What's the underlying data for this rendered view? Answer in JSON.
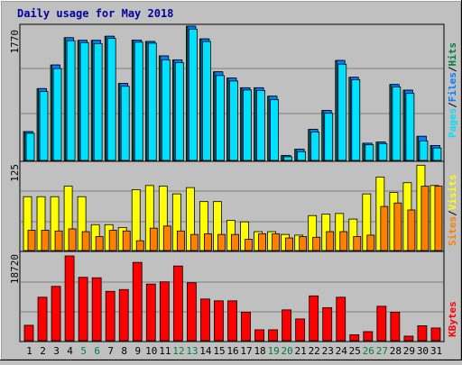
{
  "chart_data": [
    {
      "type": "bar",
      "title": "Daily usage for May 2018",
      "categories": [
        "1",
        "2",
        "3",
        "4",
        "5",
        "6",
        "7",
        "8",
        "9",
        "10",
        "11",
        "12",
        "13",
        "14",
        "15",
        "16",
        "17",
        "18",
        "19",
        "20",
        "21",
        "22",
        "23",
        "24",
        "25",
        "26",
        "27",
        "28",
        "29",
        "30",
        "31"
      ],
      "weekend_days": [
        "5",
        "6",
        "12",
        "13",
        "19",
        "20",
        "26",
        "27"
      ],
      "ymax_label": "1770",
      "ylim": [
        0,
        1770
      ],
      "ylabel_parts": [
        "Pages",
        "/",
        "Files",
        "/",
        "Hits"
      ],
      "series": [
        {
          "name": "Hits",
          "color": "#008040",
          "values": [
            380,
            947,
            1258,
            1618,
            1583,
            1583,
            1637,
            1015,
            1586,
            1568,
            1378,
            1326,
            1770,
            1602,
            1168,
            1086,
            958,
            958,
            847,
            65,
            148,
            409,
            659,
            1318,
            1096,
            227,
            242,
            1001,
            926,
            318,
            197
          ]
        },
        {
          "name": "Files",
          "color": "#0080ff",
          "values": [
            380,
            947,
            1258,
            1618,
            1583,
            1583,
            1637,
            1015,
            1586,
            1568,
            1378,
            1326,
            1770,
            1602,
            1168,
            1086,
            958,
            958,
            847,
            65,
            148,
            409,
            659,
            1318,
            1096,
            227,
            242,
            1001,
            926,
            318,
            197
          ]
        },
        {
          "name": "Pages",
          "color": "#00e0ff",
          "values": [
            358,
            908,
            1210,
            1578,
            1553,
            1540,
            1608,
            977,
            1559,
            1545,
            1324,
            1288,
            1731,
            1567,
            1119,
            1047,
            928,
            922,
            800,
            48,
            115,
            373,
            621,
            1268,
            1064,
            206,
            221,
            968,
            883,
            257,
            164
          ]
        }
      ]
    },
    {
      "type": "bar",
      "ymax_label": "125",
      "ylim": [
        0,
        125
      ],
      "ylabel_parts": [
        "Sites",
        "/",
        "Visits"
      ],
      "series": [
        {
          "name": "Visits",
          "color": "#ffff00",
          "values": [
            77,
            77,
            77,
            92,
            77,
            37,
            37,
            33,
            87,
            93,
            92,
            81,
            90,
            70,
            70,
            43,
            41,
            27,
            27,
            23,
            22,
            50,
            52,
            53,
            45,
            81,
            105,
            83,
            97,
            122,
            93
          ]
        },
        {
          "name": "Sites",
          "color": "#ff8000",
          "values": [
            29,
            29,
            28,
            31,
            27,
            20,
            29,
            28,
            14,
            32,
            35,
            28,
            23,
            24,
            23,
            23,
            16,
            24,
            24,
            18,
            20,
            19,
            27,
            27,
            20,
            22,
            63,
            68,
            58,
            92,
            92
          ]
        }
      ]
    },
    {
      "type": "bar",
      "ymax_label": "18720",
      "ylim": [
        0,
        18720
      ],
      "ylabel_parts": [
        "KBytes"
      ],
      "series": [
        {
          "name": "KBytes",
          "color": "#ff0000",
          "values": [
            3400,
            9600,
            12000,
            18720,
            14000,
            13900,
            10900,
            11300,
            17300,
            12500,
            13000,
            16500,
            12800,
            9200,
            8800,
            8800,
            6300,
            2400,
            2400,
            6800,
            4800,
            9900,
            7300,
            9600,
            1300,
            2000,
            7600,
            6300,
            1000,
            3300,
            2800
          ]
        }
      ]
    }
  ]
}
